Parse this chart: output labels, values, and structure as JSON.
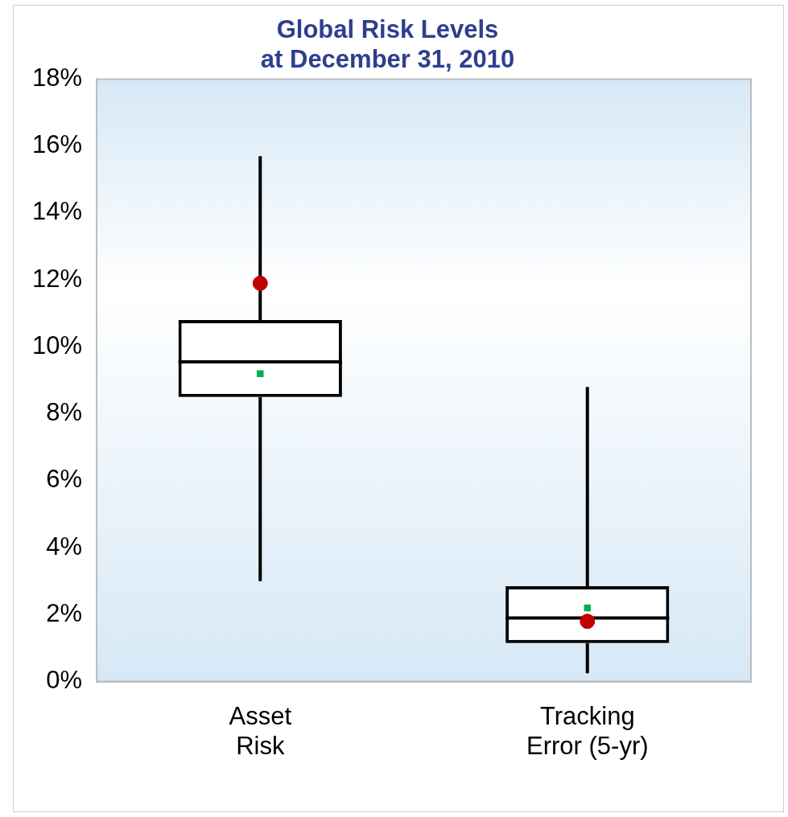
{
  "chart_data": {
    "type": "box",
    "title": "Global Risk Levels\nat December 31, 2010",
    "categories": [
      "Asset Risk",
      "Tracking Error (5-yr)"
    ],
    "series": [
      {
        "type": "box",
        "color": "#000000",
        "boxes": [
          {
            "low": 3.0,
            "q1": 8.5,
            "median": 9.55,
            "q3": 10.8,
            "high": 15.7
          },
          {
            "low": 0.25,
            "q1": 1.15,
            "median": 1.9,
            "q3": 2.85,
            "high": 8.8
          }
        ]
      },
      {
        "type": "scatter",
        "color": "#00b050",
        "x": [
          "Asset Risk",
          "Tracking Error (5-yr)"
        ],
        "values": [
          9.2,
          2.2
        ]
      },
      {
        "type": "scatter",
        "color": "#c00000",
        "x": [
          "Asset Risk",
          "Tracking Error (5-yr)"
        ],
        "values": [
          11.9,
          1.8
        ]
      }
    ],
    "ylim": [
      0,
      18
    ],
    "yticks": [
      {
        "value": 0,
        "label": "0%"
      },
      {
        "value": 2,
        "label": "2%"
      },
      {
        "value": 4,
        "label": "4%"
      },
      {
        "value": 6,
        "label": "6%"
      },
      {
        "value": 8,
        "label": "8%"
      },
      {
        "value": 10,
        "label": "10%"
      },
      {
        "value": 12,
        "label": "12%"
      },
      {
        "value": 14,
        "label": "14%"
      },
      {
        "value": 16,
        "label": "16%"
      },
      {
        "value": 18,
        "label": "18%"
      }
    ],
    "grid": false,
    "legend": false
  }
}
